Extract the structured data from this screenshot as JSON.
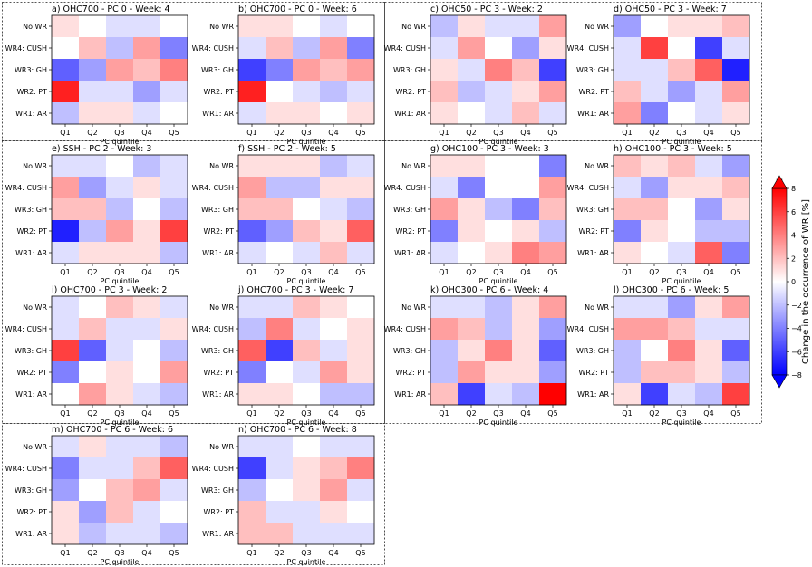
{
  "colorbar": {
    "label": "Change in the occurrence of WR [%]",
    "ticks": [
      "8",
      "6",
      "4",
      "2",
      "0",
      "−2",
      "−4",
      "−6",
      "−8"
    ],
    "tick_values": [
      8,
      6,
      4,
      2,
      0,
      -2,
      -4,
      -6,
      -8
    ],
    "vmin": -8,
    "vmax": 8,
    "colormap": "bwr"
  },
  "chart_data": [
    {
      "type": "heatmap",
      "title": "a) OHC700 - PC 0 - Week: 4",
      "xlabel": "PC quintile",
      "x_ticks": [
        "Q1",
        "Q2",
        "Q3",
        "Q4",
        "Q5"
      ],
      "y_ticks": [
        "No WR",
        "WR4: CUSH",
        "WR3: GH",
        "WR2: PT",
        "WR1: AR"
      ],
      "values": [
        [
          1,
          0,
          -1,
          -1,
          0
        ],
        [
          0,
          2,
          -2,
          3,
          -4
        ],
        [
          -5,
          -3,
          3,
          2,
          4
        ],
        [
          7,
          -1,
          -1,
          -3,
          -1
        ],
        [
          -2,
          1,
          1,
          -1,
          0
        ]
      ]
    },
    {
      "type": "heatmap",
      "title": "b) OHC700 - PC 0 - Week: 6",
      "xlabel": "PC quintile",
      "x_ticks": [
        "Q1",
        "Q2",
        "Q3",
        "Q4",
        "Q5"
      ],
      "y_ticks": [
        "No WR",
        "WR4: CUSH",
        "WR3: GH",
        "WR2: PT",
        "WR1: AR"
      ],
      "values": [
        [
          1,
          1,
          0,
          -1,
          0
        ],
        [
          -1,
          2,
          -2,
          3,
          -4
        ],
        [
          -6,
          -4,
          3,
          2,
          3
        ],
        [
          7,
          0,
          -1,
          -2,
          -1
        ],
        [
          -1,
          1,
          1,
          0,
          1
        ]
      ]
    },
    {
      "type": "heatmap",
      "title": "c) OHC50 - PC 3 - Week: 2",
      "xlabel": "PC quintile",
      "x_ticks": [
        "Q1",
        "Q2",
        "Q3",
        "Q4",
        "Q5"
      ],
      "y_ticks": [
        "No WR",
        "WR4: CUSH",
        "WR3: GH",
        "WR2: PT",
        "WR1: AR"
      ],
      "values": [
        [
          -2,
          1,
          -1,
          -1,
          3
        ],
        [
          -1,
          3,
          0,
          -3,
          1
        ],
        [
          1,
          -1,
          4,
          2,
          -6
        ],
        [
          2,
          -2,
          -1,
          1,
          3
        ],
        [
          1,
          0,
          -1,
          2,
          -1
        ]
      ]
    },
    {
      "type": "heatmap",
      "title": "d) OHC50 - PC 3 - Week: 7",
      "xlabel": "PC quintile",
      "x_ticks": [
        "Q1",
        "Q2",
        "Q3",
        "Q4",
        "Q5"
      ],
      "y_ticks": [
        "No WR",
        "WR4: CUSH",
        "WR3: GH",
        "WR2: PT",
        "WR1: AR"
      ],
      "values": [
        [
          -3,
          0,
          1,
          1,
          2
        ],
        [
          -1,
          6,
          0,
          -6,
          -1
        ],
        [
          -1,
          -1,
          2,
          5,
          -7
        ],
        [
          2,
          -1,
          -3,
          -1,
          3
        ],
        [
          3,
          -4,
          0,
          -1,
          1
        ]
      ]
    },
    {
      "type": "heatmap",
      "title": "e) SSH - PC 2 - Week: 3",
      "xlabel": "PC quintile",
      "x_ticks": [
        "Q1",
        "Q2",
        "Q3",
        "Q4",
        "Q5"
      ],
      "y_ticks": [
        "No WR",
        "WR4: CUSH",
        "WR3: GH",
        "WR2: PT",
        "WR1: AR"
      ],
      "values": [
        [
          -1,
          -1,
          0,
          -2,
          -1
        ],
        [
          3,
          -3,
          -1,
          1,
          -1
        ],
        [
          2,
          2,
          -2,
          0,
          -2
        ],
        [
          -7,
          -2,
          3,
          1,
          6
        ],
        [
          -1,
          1,
          1,
          1,
          -2
        ]
      ]
    },
    {
      "type": "heatmap",
      "title": "f) SSH - PC 2 - Week: 5",
      "xlabel": "PC quintile",
      "x_ticks": [
        "Q1",
        "Q2",
        "Q3",
        "Q4",
        "Q5"
      ],
      "y_ticks": [
        "No WR",
        "WR4: CUSH",
        "WR3: GH",
        "WR2: PT",
        "WR1: AR"
      ],
      "values": [
        [
          1,
          1,
          1,
          -2,
          -1
        ],
        [
          3,
          -2,
          -2,
          1,
          1
        ],
        [
          2,
          2,
          0,
          -1,
          -2
        ],
        [
          -5,
          -3,
          2,
          1,
          5
        ],
        [
          -1,
          0,
          -1,
          2,
          -1
        ]
      ]
    },
    {
      "type": "heatmap",
      "title": "g) OHC100 - PC 3 - Week: 3",
      "xlabel": "PC quintile",
      "x_ticks": [
        "Q1",
        "Q2",
        "Q3",
        "Q4",
        "Q5"
      ],
      "y_ticks": [
        "No WR",
        "WR4: CUSH",
        "WR3: GH",
        "WR2: PT",
        "WR1: AR"
      ],
      "values": [
        [
          1,
          1,
          0,
          0,
          -4
        ],
        [
          -1,
          -4,
          0,
          0,
          3
        ],
        [
          3,
          1,
          -2,
          -4,
          2
        ],
        [
          -4,
          1,
          0,
          1,
          -2
        ],
        [
          -1,
          0,
          1,
          4,
          3
        ]
      ]
    },
    {
      "type": "heatmap",
      "title": "h) OHC100 - PC 3 - Week: 5",
      "xlabel": "PC quintile",
      "x_ticks": [
        "Q1",
        "Q2",
        "Q3",
        "Q4",
        "Q5"
      ],
      "y_ticks": [
        "No WR",
        "WR4: CUSH",
        "WR3: GH",
        "WR2: PT",
        "WR1: AR"
      ],
      "values": [
        [
          2,
          1,
          2,
          -1,
          -3
        ],
        [
          -1,
          -3,
          1,
          1,
          2
        ],
        [
          2,
          2,
          0,
          -3,
          1
        ],
        [
          -4,
          1,
          0,
          -2,
          -2
        ],
        [
          1,
          0,
          -1,
          5,
          -4
        ]
      ]
    },
    {
      "type": "heatmap",
      "title": "i) OHC700 - PC 3 - Week: 2",
      "xlabel": "PC quintile",
      "x_ticks": [
        "Q1",
        "Q2",
        "Q3",
        "Q4",
        "Q5"
      ],
      "y_ticks": [
        "No WR",
        "WR4: CUSH",
        "WR3: GH",
        "WR2: PT",
        "WR1: AR"
      ],
      "values": [
        [
          -1,
          0,
          2,
          1,
          -1
        ],
        [
          -1,
          2,
          -1,
          -1,
          1
        ],
        [
          6,
          -5,
          -1,
          0,
          -2
        ],
        [
          -4,
          0,
          1,
          0,
          3
        ],
        [
          0,
          3,
          1,
          -1,
          -2
        ]
      ]
    },
    {
      "type": "heatmap",
      "title": "j) OHC700 - PC 3 - Week: 7",
      "xlabel": "PC quintile",
      "x_ticks": [
        "Q1",
        "Q2",
        "Q3",
        "Q4",
        "Q5"
      ],
      "y_ticks": [
        "No WR",
        "WR4: CUSH",
        "WR3: GH",
        "WR2: PT",
        "WR1: AR"
      ],
      "values": [
        [
          -1,
          -1,
          2,
          1,
          0
        ],
        [
          -2,
          4,
          -1,
          0,
          1
        ],
        [
          5,
          -6,
          2,
          -1,
          1
        ],
        [
          -4,
          0,
          -1,
          3,
          1
        ],
        [
          1,
          1,
          0,
          -2,
          -2
        ]
      ]
    },
    {
      "type": "heatmap",
      "title": "k) OHC300 - PC 6 - Week: 4",
      "xlabel": "PC quintile",
      "x_ticks": [
        "Q1",
        "Q2",
        "Q3",
        "Q4",
        "Q5"
      ],
      "y_ticks": [
        "No WR",
        "WR4: CUSH",
        "WR3: GH",
        "WR2: PT",
        "WR1: AR"
      ],
      "values": [
        [
          -1,
          -1,
          -2,
          1,
          3
        ],
        [
          3,
          2,
          -2,
          1,
          -3
        ],
        [
          -2,
          1,
          4,
          1,
          -5
        ],
        [
          -2,
          3,
          1,
          1,
          -3
        ],
        [
          2,
          -6,
          -1,
          -2,
          8
        ]
      ]
    },
    {
      "type": "heatmap",
      "title": "l) OHC300 - PC 6 - Week: 5",
      "xlabel": "PC quintile",
      "x_ticks": [
        "Q1",
        "Q2",
        "Q3",
        "Q4",
        "Q5"
      ],
      "y_ticks": [
        "No WR",
        "WR4: CUSH",
        "WR3: GH",
        "WR2: PT",
        "WR1: AR"
      ],
      "values": [
        [
          -1,
          -1,
          -3,
          1,
          3
        ],
        [
          3,
          3,
          2,
          -1,
          -1
        ],
        [
          -2,
          0,
          4,
          1,
          -5
        ],
        [
          -2,
          2,
          2,
          1,
          -2
        ],
        [
          1,
          -6,
          -1,
          -2,
          6
        ]
      ]
    },
    {
      "type": "heatmap",
      "title": "m) OHC700 - PC 6 - Week: 6",
      "xlabel": "PC quintile",
      "x_ticks": [
        "Q1",
        "Q2",
        "Q3",
        "Q4",
        "Q5"
      ],
      "y_ticks": [
        "No WR",
        "WR4: CUSH",
        "WR3: GH",
        "WR2: PT",
        "WR1: AR"
      ],
      "values": [
        [
          -1,
          1,
          -1,
          -1,
          -2
        ],
        [
          -4,
          -1,
          -1,
          2,
          5
        ],
        [
          -3,
          0,
          2,
          3,
          -1
        ],
        [
          1,
          -3,
          2,
          -1,
          0
        ],
        [
          1,
          -2,
          -1,
          -1,
          -2
        ]
      ]
    },
    {
      "type": "heatmap",
      "title": "n) OHC700 - PC 6 - Week: 8",
      "xlabel": "PC quintile",
      "x_ticks": [
        "Q1",
        "Q2",
        "Q3",
        "Q4",
        "Q5"
      ],
      "y_ticks": [
        "No WR",
        "WR4: CUSH",
        "WR3: GH",
        "WR2: PT",
        "WR1: AR"
      ],
      "values": [
        [
          -1,
          -1,
          0,
          -1,
          -1
        ],
        [
          -6,
          -1,
          1,
          2,
          4
        ],
        [
          -2,
          0,
          1,
          3,
          -1
        ],
        [
          2,
          -1,
          -1,
          1,
          0
        ],
        [
          2,
          2,
          -1,
          -1,
          -1
        ]
      ]
    }
  ]
}
